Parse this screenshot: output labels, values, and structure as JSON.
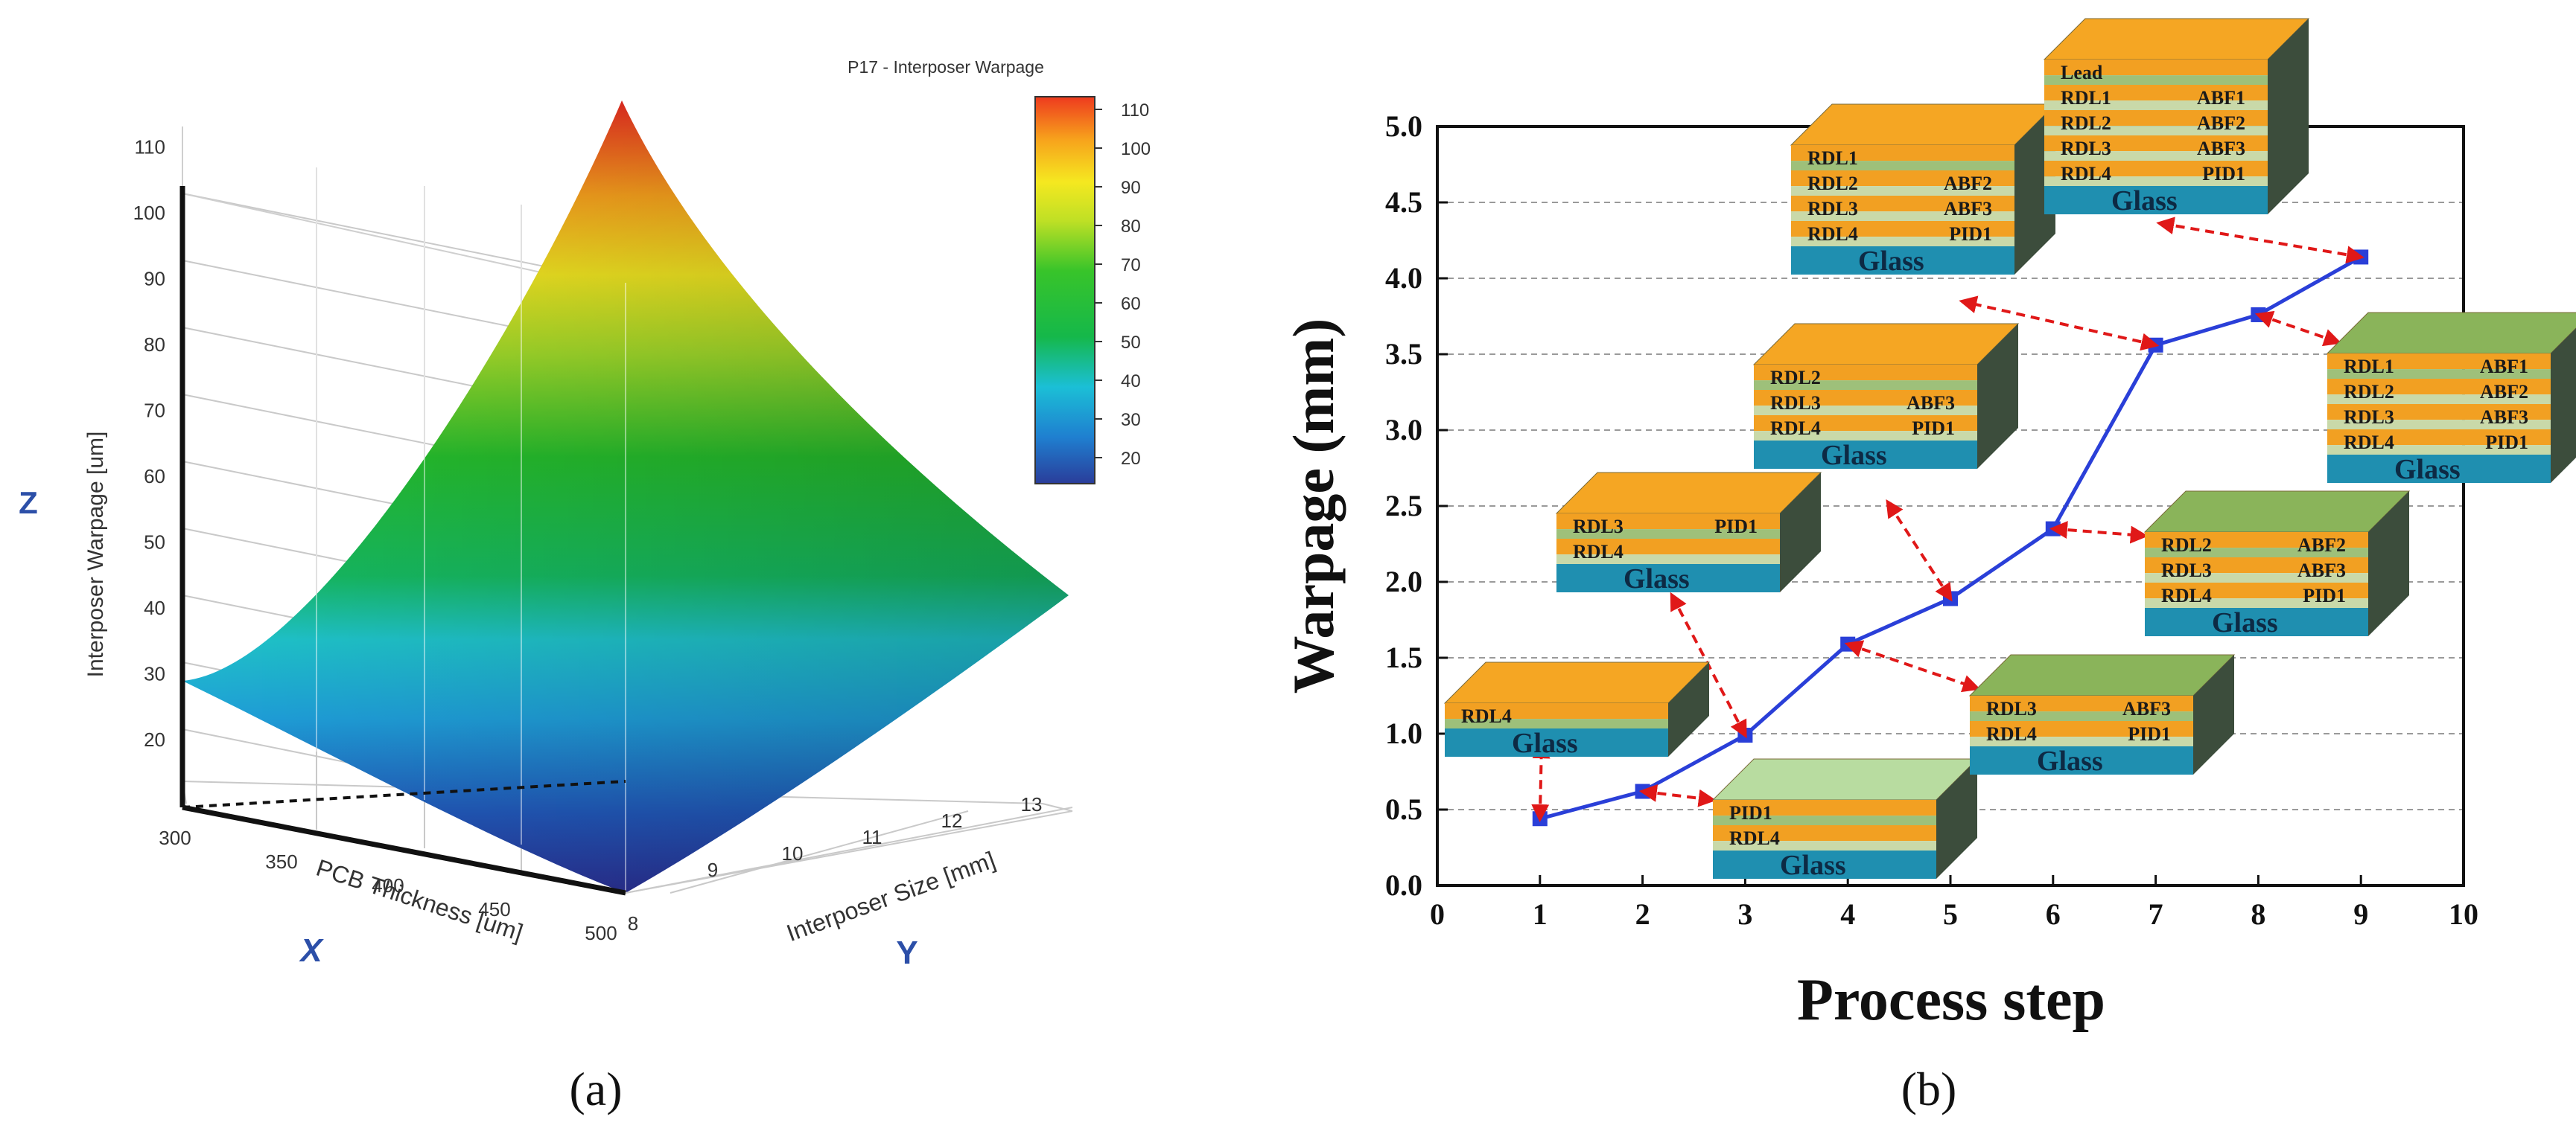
{
  "figure": {
    "panel_a_label": "(a)",
    "panel_b_label": "(b)"
  },
  "chart_data": [
    {
      "type": "surface",
      "title": "P17 - Interposer Warpage",
      "xlabel": "PCB Thickness  [um]",
      "ylabel": "Interposer Size  [mm]",
      "zlabel": "Interposer Warpage  [um]",
      "axis_letters": {
        "x": "X",
        "y": "Y",
        "z": "Z"
      },
      "x_ticks": [
        "300",
        "350",
        "400",
        "450",
        "500"
      ],
      "y_ticks": [
        "8",
        "9",
        "10",
        "11",
        "12",
        "13"
      ],
      "z_ticks": [
        "20",
        "30",
        "40",
        "50",
        "60",
        "70",
        "80",
        "90",
        "100",
        "110"
      ],
      "colorbar_ticks": [
        "20",
        "30",
        "40",
        "50",
        "60",
        "70",
        "80",
        "90",
        "100",
        "110"
      ],
      "corner_values": [
        {
          "pcb_thickness": 300,
          "interposer_size": 8,
          "warpage": 33
        },
        {
          "pcb_thickness": 500,
          "interposer_size": 8,
          "warpage": 8
        },
        {
          "pcb_thickness": 500,
          "interposer_size": 13,
          "warpage": 46
        },
        {
          "pcb_thickness": 300,
          "interposer_size": 13,
          "warpage": 115
        }
      ],
      "colormap": [
        "#2a3d9a",
        "#1f7fd0",
        "#1bbfd6",
        "#15b84a",
        "#38c42a",
        "#bfe025",
        "#f5e820",
        "#f7a21c",
        "#ee3a1e"
      ]
    },
    {
      "type": "line",
      "xlabel": "Process step",
      "ylabel": "Warpage (mm)",
      "xlim": [
        0,
        10
      ],
      "ylim": [
        0,
        5.0
      ],
      "x_ticks": [
        "0",
        "1",
        "2",
        "3",
        "4",
        "5",
        "6",
        "7",
        "8",
        "9",
        "10"
      ],
      "y_ticks": [
        "0.0",
        "0.5",
        "1.0",
        "1.5",
        "2.0",
        "2.5",
        "3.0",
        "3.5",
        "4.0",
        "4.5",
        "5.0"
      ],
      "series": [
        {
          "name": "warpage",
          "color": "#2a3fd8",
          "x": [
            1,
            2,
            3,
            4,
            5,
            6,
            7,
            8,
            9
          ],
          "y": [
            0.44,
            0.62,
            0.99,
            1.59,
            1.89,
            2.35,
            3.56,
            3.76,
            4.14
          ]
        }
      ],
      "stacks": [
        {
          "step": 1,
          "layers": [
            "RDL4"
          ],
          "base": "Glass",
          "top_color": "#f5a623"
        },
        {
          "step": 2,
          "layers": [
            "PID1",
            "RDL4"
          ],
          "base": "Glass",
          "top_color": "#b8dca0"
        },
        {
          "step": 3,
          "layers": [
            "RDL3  PID1",
            "RDL4"
          ],
          "base": "Glass",
          "top_color": "#f5a623"
        },
        {
          "step": 4,
          "layers": [
            "RDL3  ABF3",
            "RDL4  PID1"
          ],
          "base": "Glass",
          "top_color": "#8ab45a"
        },
        {
          "step": 5,
          "layers": [
            "RDL2",
            "RDL3  ABF3",
            "RDL4  PID1"
          ],
          "base": "Glass",
          "top_color": "#f5a623"
        },
        {
          "step": 6,
          "layers": [
            "RDL2  ABF2",
            "RDL3  ABF3",
            "RDL4  PID1"
          ],
          "base": "Glass",
          "top_color": "#8ab45a"
        },
        {
          "step": 7,
          "layers": [
            "RDL1",
            "RDL2  ABF2",
            "RDL3  ABF3",
            "RDL4  PID1"
          ],
          "base": "Glass",
          "top_color": "#f5a623"
        },
        {
          "step": 8,
          "layers": [
            "RDL1  ABF1",
            "RDL2  ABF2",
            "RDL3  ABF3",
            "RDL4  PID1"
          ],
          "base": "Glass",
          "top_color": "#8ab45a"
        },
        {
          "step": 9,
          "layers": [
            "Lead",
            "RDL1  ABF1",
            "RDL2  ABF2",
            "RDL3  ABF3",
            "RDL4  PID1"
          ],
          "base": "Glass",
          "top_color": "#f5a623"
        }
      ]
    }
  ]
}
